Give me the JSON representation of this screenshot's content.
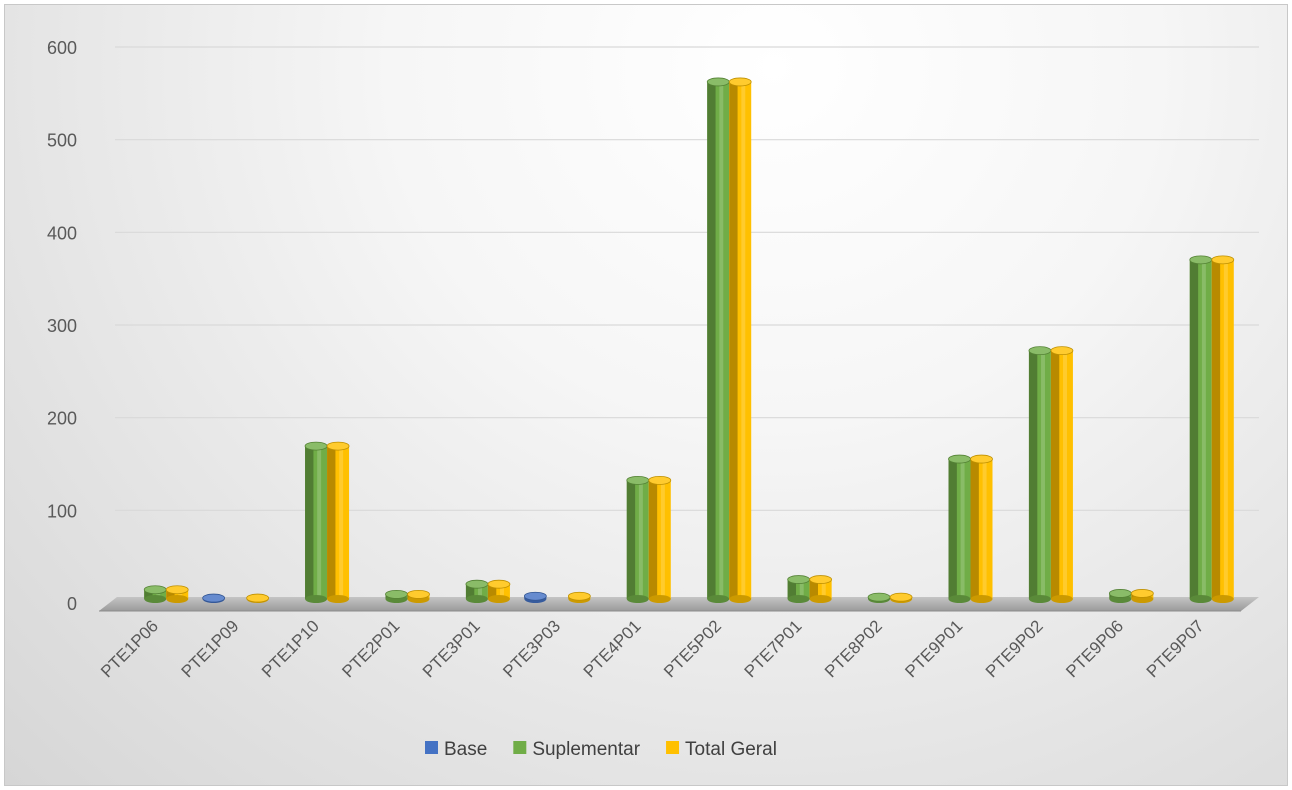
{
  "colors": {
    "Base": "#4472c4",
    "Suplementar": "#70ad47",
    "Total Geral": "#ffc000"
  },
  "chart_data": {
    "type": "bar",
    "categories": [
      "PTE1P06",
      "PTE1P09",
      "PTE1P10",
      "PTE2P01",
      "PTE3P01",
      "PTE3P03",
      "PTE4P01",
      "PTE5P02",
      "PTE7P01",
      "PTE8P02",
      "PTE9P01",
      "PTE9P02",
      "PTE9P06",
      "PTE9P07"
    ],
    "series": [
      {
        "name": "Base",
        "values": [
          0,
          1,
          0,
          0,
          0,
          3,
          0,
          0,
          0,
          0,
          0,
          0,
          0,
          0
        ]
      },
      {
        "name": "Suplementar",
        "values": [
          10,
          0,
          165,
          5,
          16,
          0,
          128,
          558,
          21,
          2,
          151,
          268,
          6,
          366
        ]
      },
      {
        "name": "Total Geral",
        "values": [
          10,
          1,
          165,
          5,
          16,
          3,
          128,
          558,
          21,
          2,
          151,
          268,
          6,
          366
        ]
      }
    ],
    "ylim": [
      0,
      600
    ],
    "yticks": [
      "0",
      "100",
      "200",
      "300",
      "400",
      "500",
      "600"
    ],
    "grid": true,
    "legend": "bottom"
  }
}
